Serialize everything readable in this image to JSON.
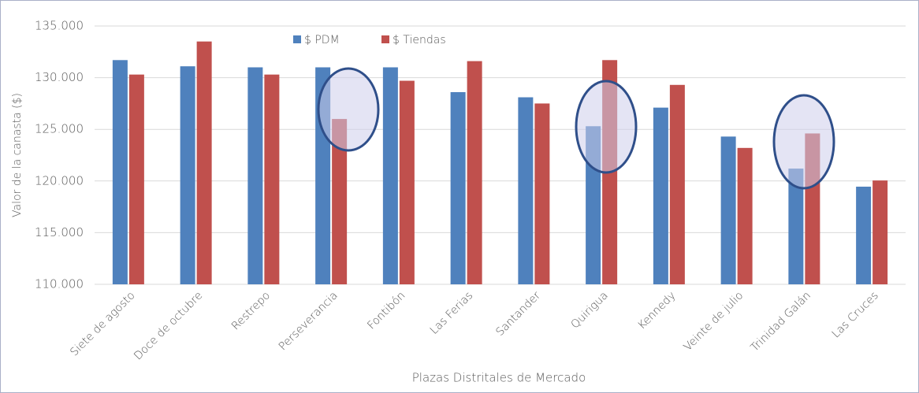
{
  "chart_data": {
    "type": "bar",
    "y_label": "Valor de la canasta ($)",
    "x_label": "Plazas Distritales  de Mercado",
    "categories": [
      "Siete de agosto",
      "Doce de octubre",
      "Restrepo",
      "Perseverancia",
      "Fontibón",
      "Las Ferias",
      "Santander",
      "Quirigua",
      "Kennedy",
      "Veinte de julio",
      "Trinidad Galán",
      "Las Cruces"
    ],
    "series": [
      {
        "name": "$ PDM",
        "color": "#4f81bd",
        "values": [
          131700,
          131100,
          131000,
          131000,
          131000,
          128600,
          128100,
          125300,
          127100,
          124300,
          121200,
          119450
        ]
      },
      {
        "name": "$ Tiendas",
        "color": "#c0504d",
        "values": [
          130300,
          133500,
          130300,
          126000,
          129700,
          131600,
          127500,
          131700,
          129300,
          123200,
          124600,
          120050
        ]
      }
    ],
    "ylim": [
      110000,
      135000
    ],
    "yticks": [
      {
        "value": 110000,
        "label": "110.000"
      },
      {
        "value": 115000,
        "label": "115.000"
      },
      {
        "value": 120000,
        "label": "120.000"
      },
      {
        "value": 125000,
        "label": "125.000"
      },
      {
        "value": 130000,
        "label": "130.000"
      },
      {
        "value": 135000,
        "label": "135.000"
      }
    ],
    "grid": true
  }
}
